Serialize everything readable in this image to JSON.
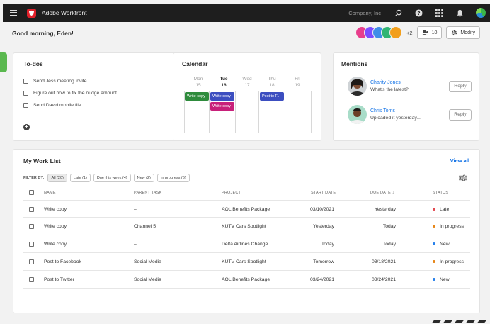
{
  "topbar": {
    "app_title": "Adobe Workfront",
    "company": "Company, Inc"
  },
  "greeting": "Good morning, Eden!",
  "team": {
    "extra_count": "+2",
    "people_count": "10",
    "modify_label": "Modify",
    "avatar_colors": [
      "#e83e8c",
      "#7c4dff",
      "#3f8ee8",
      "#2fb573",
      "#f29f1c"
    ]
  },
  "todos": {
    "title": "To-dos",
    "items": [
      "Send Jess meeting invite",
      "Figure out how to fix the nudge amount",
      "Send David mobile file"
    ]
  },
  "calendar": {
    "title": "Calendar",
    "days": [
      {
        "name": "Mon",
        "date": "15"
      },
      {
        "name": "Tue",
        "date": "16"
      },
      {
        "name": "Wed",
        "date": "17"
      },
      {
        "name": "Thu",
        "date": "18"
      },
      {
        "name": "Fri",
        "date": "19"
      }
    ],
    "events": [
      {
        "label": "Write copy",
        "color": "#2e8b3c"
      },
      {
        "label": "Write copy",
        "color": "#3c4ec0"
      },
      {
        "label": "Write copy",
        "color": "#c8207a"
      },
      {
        "label": "Post to F...",
        "color": "#3c4ec0"
      }
    ]
  },
  "mentions": {
    "title": "Mentions",
    "items": [
      {
        "name": "Charity Jones",
        "message": "What's the latest?",
        "reply": "Reply"
      },
      {
        "name": "Chris Toms",
        "message": "Uploaded it yesterday...",
        "reply": "Reply"
      }
    ]
  },
  "worklist": {
    "title": "My Work List",
    "view_all": "View all",
    "filter_label": "FILTER BY:",
    "filters": [
      "All (20)",
      "Late (1)",
      "Due this week (4)",
      "New (2)",
      "In progress (6)"
    ],
    "columns": {
      "name": "NAME",
      "parent": "PARENT TASK",
      "project": "PROJECT",
      "start": "START DATE",
      "due": "DUE DATE",
      "status": "STATUS"
    },
    "rows": [
      {
        "name": "Write copy",
        "parent": "–",
        "project": "AOL Benefits Package",
        "start": "03/10/2021",
        "due": "Yesterday",
        "status": "Late",
        "status_color": "#e34850"
      },
      {
        "name": "Write copy",
        "parent": "Channel 5",
        "project": "KUTV Cars Spotlight",
        "start": "Yesterday",
        "due": "Today",
        "status": "In progress",
        "status_color": "#e68619"
      },
      {
        "name": "Write copy",
        "parent": "–",
        "project": "Delta Airlines Change",
        "start": "Today",
        "due": "Today",
        "status": "New",
        "status_color": "#2680eb"
      },
      {
        "name": "Post to Facebook",
        "parent": "Social Media",
        "project": "KUTV Cars Spotlight",
        "start": "Tomorrow",
        "due": "03/18/2021",
        "status": "In progress",
        "status_color": "#e68619"
      },
      {
        "name": "Post to Twitter",
        "parent": "Social Media",
        "project": "AOL Benefits Package",
        "start": "03/24/2021",
        "due": "03/24/2021",
        "status": "New",
        "status_color": "#2680eb"
      }
    ]
  }
}
